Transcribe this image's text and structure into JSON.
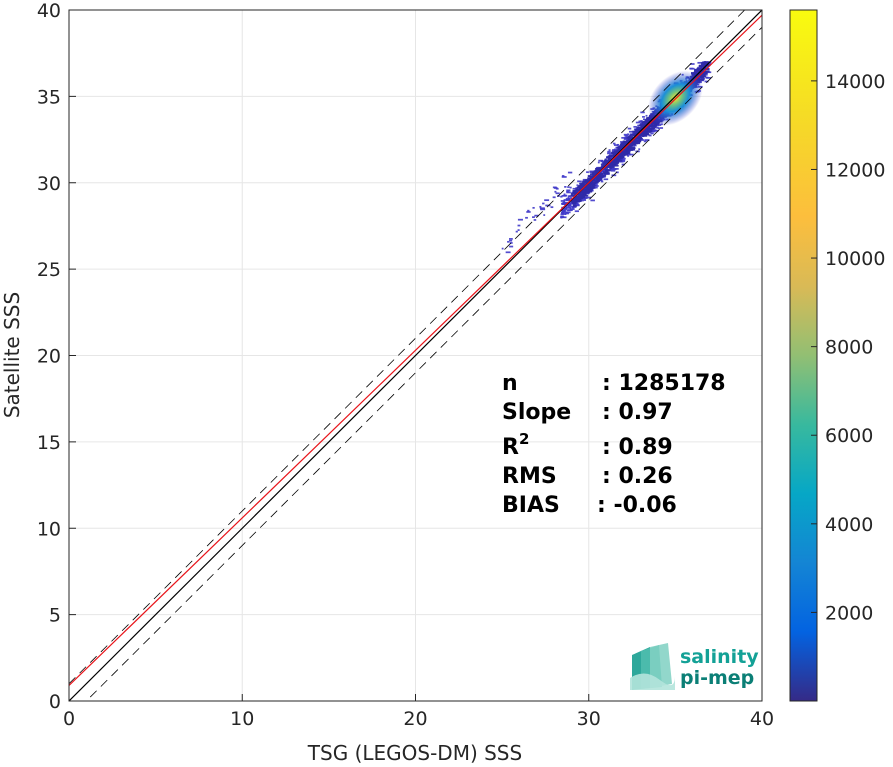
{
  "chart_data": {
    "type": "heatmap",
    "xlabel": "TSG (LEGOS-DM) SSS",
    "ylabel": "Satellite SSS",
    "xlim": [
      0,
      40
    ],
    "ylim": [
      0,
      40
    ],
    "xticks": [
      "0",
      "10",
      "20",
      "30",
      "40"
    ],
    "yticks": [
      "0",
      "5",
      "10",
      "15",
      "20",
      "25",
      "30",
      "35",
      "40"
    ],
    "grid": true,
    "colorbar": {
      "range": [
        0,
        15600
      ],
      "ticks": [
        "2000",
        "4000",
        "6000",
        "8000",
        "10000",
        "12000",
        "14000"
      ],
      "colormap": "parula"
    },
    "reference_lines": [
      {
        "kind": "identity",
        "slope": 1,
        "intercept": 0,
        "color": "#000000",
        "style": "solid"
      },
      {
        "kind": "upper bound",
        "slope": 1,
        "intercept": 1,
        "color": "#000000",
        "style": "dashed"
      },
      {
        "kind": "lower bound",
        "slope": 1,
        "intercept": -1,
        "color": "#000000",
        "style": "dashed"
      },
      {
        "kind": "regression",
        "slope": 0.97,
        "intercept": 0.9,
        "color": "#e8141a",
        "style": "solid"
      }
    ],
    "density_core": {
      "x": 35.0,
      "y": 34.9,
      "peak_count": 15600
    },
    "density_extent": {
      "x": [
        24.9,
        36.9
      ],
      "y": [
        26.1,
        37.0
      ]
    }
  },
  "stats": [
    {
      "label": "n",
      "value": ": 1285178"
    },
    {
      "label": "Slope",
      "value": ": 0.97"
    },
    {
      "label": "R",
      "sup": "2",
      "value": ": 0.89"
    },
    {
      "label": "RMS",
      "value": ": 0.26"
    },
    {
      "label": "BIAS",
      "value": ": -0.06"
    }
  ],
  "logo": {
    "line1": "salinity",
    "line2": "pi-mep",
    "color": "#13a196"
  }
}
